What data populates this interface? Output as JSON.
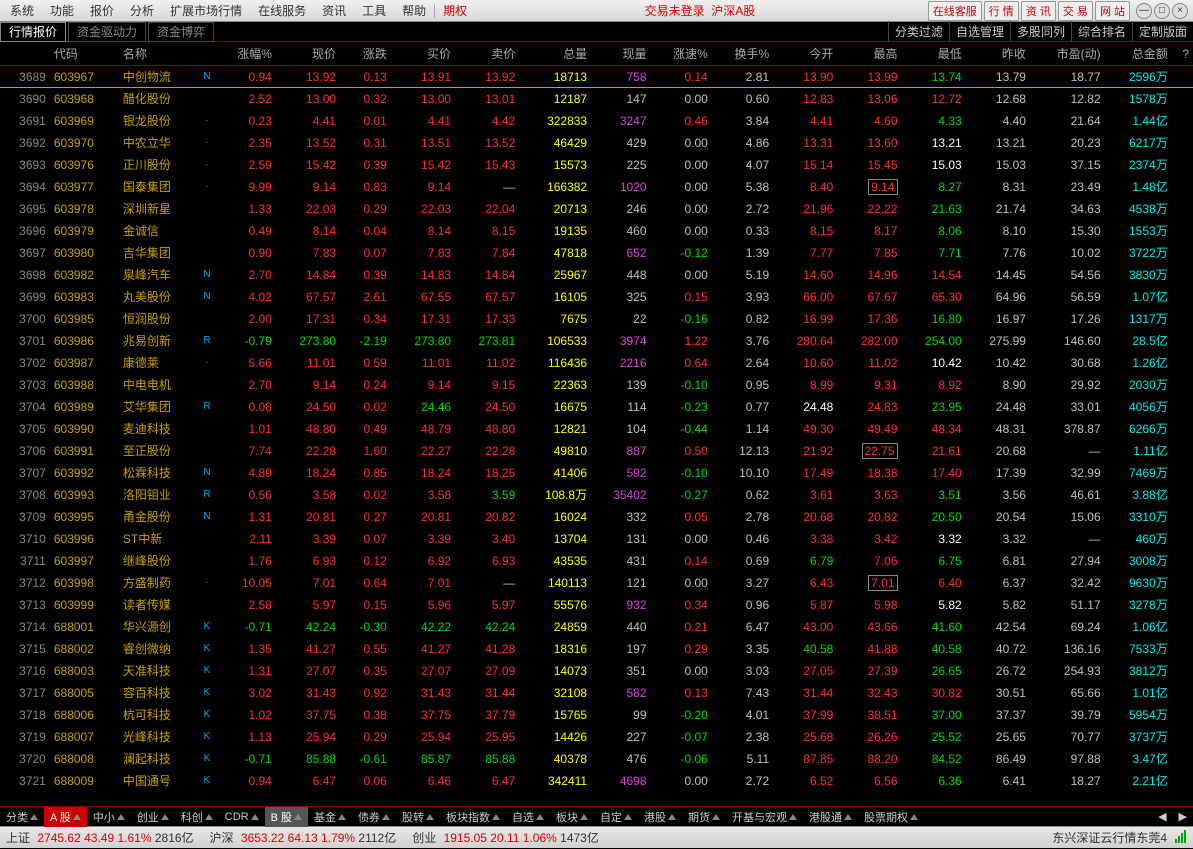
{
  "menu": {
    "items": [
      "系统",
      "功能",
      "报价",
      "分析",
      "扩展市场行情",
      "在线服务",
      "资讯",
      "工具",
      "帮助"
    ],
    "options": "期权",
    "login": "交易未登录",
    "market": "沪深A股",
    "right_buttons": [
      "在线客服",
      "行 情",
      "资 讯",
      "交 易",
      "网 站"
    ]
  },
  "subtabs": {
    "left": [
      "行情报价",
      "资金驱动力",
      "资金博弈"
    ],
    "active": 0,
    "right": [
      "分类过滤",
      "自选管理",
      "多股同列",
      "综合排名",
      "定制版面"
    ]
  },
  "columns": [
    "",
    "代码",
    "名称",
    "",
    "涨幅%",
    "现价",
    "涨跌",
    "买价",
    "卖价",
    "总量",
    "现量",
    "涨速%",
    "换手%",
    "今开",
    "最高",
    "最低",
    "昨收",
    "市盈(动)",
    "总金额",
    "?"
  ],
  "rows": [
    {
      "i": 3689,
      "c": "603967",
      "n": "中创物流",
      "m": "N",
      "pct": "0.94",
      "pc": "red",
      "px": "13.92",
      "chg": "0.13",
      "bid": "13.91",
      "ask": "13.92",
      "vol": "18713",
      "cv": "758",
      "cvc": "purple",
      "spd": "0.14",
      "sc": "red",
      "to": "2.81",
      "op": "13.90",
      "hi": "13.99",
      "lo": "13.74",
      "loc": "green",
      "pre": "13.79",
      "pe": "18.77",
      "amt": "2596万",
      "ul": true
    },
    {
      "i": 3690,
      "c": "603968",
      "n": "醋化股份",
      "m": "",
      "pct": "2.52",
      "pc": "red",
      "px": "13.00",
      "chg": "0.32",
      "bid": "13.00",
      "ask": "13.01",
      "vol": "12187",
      "cv": "147",
      "cvc": "gray",
      "spd": "0.00",
      "sc": "gray",
      "to": "0.60",
      "op": "12.83",
      "hi": "13.06",
      "lo": "12.72",
      "loc": "red",
      "pre": "12.68",
      "pe": "12.82",
      "amt": "1578万"
    },
    {
      "i": 3691,
      "c": "603969",
      "n": "银龙股份",
      "m": "·",
      "pct": "0.23",
      "pc": "red",
      "px": "4.41",
      "chg": "0.01",
      "bid": "4.41",
      "ask": "4.42",
      "vol": "322833",
      "cv": "3247",
      "cvc": "purple",
      "spd": "0.46",
      "sc": "red",
      "to": "3.84",
      "op": "4.41",
      "hi": "4.60",
      "lo": "4.33",
      "loc": "green",
      "pre": "4.40",
      "pe": "21.64",
      "amt": "1.44亿"
    },
    {
      "i": 3692,
      "c": "603970",
      "n": "中农立华",
      "m": "·",
      "pct": "2.35",
      "pc": "red",
      "px": "13.52",
      "chg": "0.31",
      "bid": "13.51",
      "ask": "13.52",
      "vol": "46429",
      "cv": "429",
      "cvc": "gray",
      "spd": "0.00",
      "sc": "gray",
      "to": "4.86",
      "op": "13.31",
      "hi": "13.60",
      "lo": "13.21",
      "loc": "white",
      "pre": "13.21",
      "pe": "20.23",
      "amt": "6217万"
    },
    {
      "i": 3693,
      "c": "603976",
      "n": "正川股份",
      "m": "·",
      "pct": "2.59",
      "pc": "red",
      "px": "15.42",
      "chg": "0.39",
      "bid": "15.42",
      "ask": "15.43",
      "vol": "15573",
      "cv": "225",
      "cvc": "gray",
      "spd": "0.00",
      "sc": "gray",
      "to": "4.07",
      "op": "15.14",
      "hi": "15.45",
      "lo": "15.03",
      "loc": "white",
      "pre": "15.03",
      "pe": "37.15",
      "amt": "2374万"
    },
    {
      "i": 3694,
      "c": "603977",
      "n": "国泰集团",
      "m": "·",
      "pct": "9.99",
      "pc": "red",
      "px": "9.14",
      "chg": "0.83",
      "bid": "9.14",
      "ask": "—",
      "askc": "gray",
      "vol": "166382",
      "cv": "1020",
      "cvc": "purple",
      "spd": "0.00",
      "sc": "gray",
      "to": "5.38",
      "op": "8.40",
      "hi": "9.14",
      "hibox": true,
      "lo": "8.27",
      "loc": "green",
      "pre": "8.31",
      "pe": "23.49",
      "amt": "1.48亿"
    },
    {
      "i": 3695,
      "c": "603978",
      "n": "深圳新星",
      "m": "",
      "pct": "1.33",
      "pc": "red",
      "px": "22.03",
      "chg": "0.29",
      "bid": "22.03",
      "ask": "22.04",
      "vol": "20713",
      "cv": "246",
      "cvc": "gray",
      "spd": "0.00",
      "sc": "gray",
      "to": "2.72",
      "op": "21.96",
      "hi": "22.22",
      "lo": "21.63",
      "loc": "green",
      "pre": "21.74",
      "pe": "34.63",
      "amt": "4538万"
    },
    {
      "i": 3696,
      "c": "603979",
      "n": "金诚信",
      "m": "",
      "pct": "0.49",
      "pc": "red",
      "px": "8.14",
      "chg": "0.04",
      "bid": "8.14",
      "ask": "8.15",
      "vol": "19135",
      "cv": "460",
      "cvc": "gray",
      "spd": "0.00",
      "sc": "gray",
      "to": "0.33",
      "op": "8.15",
      "hi": "8.17",
      "lo": "8.06",
      "loc": "green",
      "pre": "8.10",
      "pe": "15.30",
      "amt": "1553万"
    },
    {
      "i": 3697,
      "c": "603980",
      "n": "吉华集团",
      "m": "",
      "pct": "0.90",
      "pc": "red",
      "px": "7.83",
      "chg": "0.07",
      "bid": "7.83",
      "ask": "7.84",
      "vol": "47818",
      "cv": "652",
      "cvc": "purple",
      "spd": "-0.12",
      "sc": "green",
      "to": "1.39",
      "op": "7.77",
      "hi": "7.85",
      "lo": "7.71",
      "loc": "green",
      "pre": "7.76",
      "pe": "10.02",
      "amt": "3722万"
    },
    {
      "i": 3698,
      "c": "603982",
      "n": "泉峰汽车",
      "m": "N",
      "pct": "2.70",
      "pc": "red",
      "px": "14.84",
      "chg": "0.39",
      "bid": "14.83",
      "ask": "14.84",
      "vol": "25967",
      "cv": "448",
      "cvc": "gray",
      "spd": "0.00",
      "sc": "gray",
      "to": "5.19",
      "op": "14.60",
      "hi": "14.96",
      "lo": "14.54",
      "loc": "red",
      "pre": "14.45",
      "pe": "54.56",
      "amt": "3830万"
    },
    {
      "i": 3699,
      "c": "603983",
      "n": "丸美股份",
      "m": "N",
      "pct": "4.02",
      "pc": "red",
      "px": "67.57",
      "chg": "2.61",
      "bid": "67.55",
      "ask": "67.57",
      "vol": "16105",
      "cv": "325",
      "cvc": "gray",
      "spd": "0.15",
      "sc": "red",
      "to": "3.93",
      "op": "66.00",
      "hi": "67.67",
      "lo": "65.30",
      "loc": "red",
      "pre": "64.96",
      "pe": "56.59",
      "amt": "1.07亿"
    },
    {
      "i": 3700,
      "c": "603985",
      "n": "恒润股份",
      "m": "",
      "pct": "2.00",
      "pc": "red",
      "px": "17.31",
      "chg": "0.34",
      "bid": "17.31",
      "ask": "17.33",
      "vol": "7675",
      "cv": "22",
      "cvc": "gray",
      "spd": "-0.16",
      "sc": "green",
      "to": "0.82",
      "op": "16.99",
      "hi": "17.36",
      "lo": "16.80",
      "loc": "green",
      "pre": "16.97",
      "pe": "17.26",
      "amt": "1317万"
    },
    {
      "i": 3701,
      "c": "603986",
      "n": "兆易创新",
      "m": "R",
      "pct": "-0.79",
      "pc": "green",
      "px": "273.80",
      "pxc": "green",
      "chg": "-2.19",
      "chgc": "green",
      "bid": "273.80",
      "bidc": "green",
      "ask": "273.81",
      "askc": "green",
      "vol": "106533",
      "cv": "3974",
      "cvc": "purple",
      "spd": "1.22",
      "sc": "red",
      "to": "3.76",
      "op": "280.64",
      "hi": "282.00",
      "lo": "254.00",
      "loc": "green",
      "pre": "275.99",
      "pe": "146.60",
      "amt": "28.5亿"
    },
    {
      "i": 3702,
      "c": "603987",
      "n": "康德莱",
      "m": "·",
      "pct": "5.66",
      "pc": "red",
      "px": "11.01",
      "chg": "0.59",
      "bid": "11.01",
      "ask": "11.02",
      "vol": "116436",
      "cv": "2216",
      "cvc": "purple",
      "spd": "0.64",
      "sc": "red",
      "to": "2.64",
      "op": "10.60",
      "hi": "11.02",
      "lo": "10.42",
      "loc": "white",
      "pre": "10.42",
      "pe": "30.68",
      "amt": "1.26亿"
    },
    {
      "i": 3703,
      "c": "603988",
      "n": "中电电机",
      "m": "",
      "pct": "2.70",
      "pc": "red",
      "px": "9.14",
      "chg": "0.24",
      "bid": "9.14",
      "ask": "9.15",
      "vol": "22363",
      "cv": "139",
      "cvc": "gray",
      "spd": "-0.10",
      "sc": "green",
      "to": "0.95",
      "op": "8.99",
      "hi": "9.31",
      "lo": "8.92",
      "loc": "red",
      "pre": "8.90",
      "pe": "29.92",
      "amt": "2030万"
    },
    {
      "i": 3704,
      "c": "603989",
      "n": "艾华集团",
      "m": "R",
      "pct": "0.08",
      "pc": "red",
      "px": "24.50",
      "chg": "0.02",
      "bid": "24.46",
      "bidc": "green",
      "ask": "24.50",
      "vol": "16675",
      "cv": "114",
      "cvc": "gray",
      "spd": "-0.23",
      "sc": "green",
      "to": "0.77",
      "op": "24.48",
      "opc": "white",
      "hi": "24.83",
      "lo": "23.95",
      "loc": "green",
      "pre": "24.48",
      "pe": "33.01",
      "amt": "4056万"
    },
    {
      "i": 3705,
      "c": "603990",
      "n": "麦迪科技",
      "m": "",
      "pct": "1.01",
      "pc": "red",
      "px": "48.80",
      "chg": "0.49",
      "bid": "48.79",
      "ask": "48.80",
      "vol": "12821",
      "cv": "104",
      "cvc": "gray",
      "spd": "-0.44",
      "sc": "green",
      "to": "1.14",
      "op": "49.30",
      "hi": "49.49",
      "lo": "48.34",
      "loc": "red",
      "pre": "48.31",
      "pe": "378.87",
      "amt": "6266万"
    },
    {
      "i": 3706,
      "c": "603991",
      "n": "至正股份",
      "m": "",
      "pct": "7.74",
      "pc": "red",
      "px": "22.28",
      "chg": "1.60",
      "bid": "22.27",
      "ask": "22.28",
      "vol": "49810",
      "cv": "887",
      "cvc": "purple",
      "spd": "0.50",
      "sc": "red",
      "to": "12.13",
      "op": "21.92",
      "hi": "22.75",
      "hibox": true,
      "lo": "21.61",
      "loc": "red",
      "pre": "20.68",
      "pe": "—",
      "amt": "1.11亿"
    },
    {
      "i": 3707,
      "c": "603992",
      "n": "松霖科技",
      "m": "N",
      "pct": "4.89",
      "pc": "red",
      "px": "18.24",
      "chg": "0.85",
      "bid": "18.24",
      "ask": "18.25",
      "vol": "41406",
      "cv": "592",
      "cvc": "purple",
      "spd": "-0.10",
      "sc": "green",
      "to": "10.10",
      "op": "17.49",
      "hi": "18.38",
      "lo": "17.40",
      "loc": "red",
      "pre": "17.39",
      "pe": "32.99",
      "amt": "7469万"
    },
    {
      "i": 3708,
      "c": "603993",
      "n": "洛阳钼业",
      "m": "R",
      "pct": "0.56",
      "pc": "red",
      "px": "3.58",
      "chg": "0.02",
      "bid": "3.58",
      "ask": "3.59",
      "askc": "green",
      "vol": "108.8万",
      "cv": "35402",
      "cvc": "purple",
      "spd": "-0.27",
      "sc": "green",
      "to": "0.62",
      "op": "3.61",
      "hi": "3.63",
      "lo": "3.51",
      "loc": "green",
      "pre": "3.56",
      "pe": "46.61",
      "amt": "3.88亿"
    },
    {
      "i": 3709,
      "c": "603995",
      "n": "甬金股份",
      "m": "N",
      "pct": "1.31",
      "pc": "red",
      "px": "20.81",
      "chg": "0.27",
      "bid": "20.81",
      "ask": "20.82",
      "vol": "16024",
      "cv": "332",
      "cvc": "gray",
      "spd": "0.05",
      "sc": "red",
      "to": "2.78",
      "op": "20.68",
      "hi": "20.82",
      "lo": "20.50",
      "loc": "green",
      "pre": "20.54",
      "pe": "15.06",
      "amt": "3310万"
    },
    {
      "i": 3710,
      "c": "603996",
      "n": "ST中新",
      "m": "",
      "pct": "2.11",
      "pc": "red",
      "px": "3.39",
      "chg": "0.07",
      "bid": "3.39",
      "ask": "3.40",
      "vol": "13704",
      "cv": "131",
      "cvc": "gray",
      "spd": "0.00",
      "sc": "gray",
      "to": "0.46",
      "op": "3.38",
      "hi": "3.42",
      "lo": "3.32",
      "loc": "white",
      "pre": "3.32",
      "pe": "—",
      "amt": "460万"
    },
    {
      "i": 3711,
      "c": "603997",
      "n": "继峰股份",
      "m": "",
      "pct": "1.76",
      "pc": "red",
      "px": "6.93",
      "chg": "0.12",
      "bid": "6.92",
      "ask": "6.93",
      "vol": "43535",
      "cv": "431",
      "cvc": "gray",
      "spd": "0.14",
      "sc": "red",
      "to": "0.69",
      "op": "6.79",
      "opc": "green",
      "hi": "7.06",
      "lo": "6.75",
      "loc": "green",
      "pre": "6.81",
      "pe": "27.94",
      "amt": "3008万"
    },
    {
      "i": 3712,
      "c": "603998",
      "n": "方盛制药",
      "m": "·",
      "pct": "10.05",
      "pc": "red",
      "px": "7.01",
      "chg": "0.64",
      "bid": "7.01",
      "ask": "—",
      "askc": "gray",
      "vol": "140113",
      "cv": "121",
      "cvc": "gray",
      "spd": "0.00",
      "sc": "gray",
      "to": "3.27",
      "op": "6.43",
      "hi": "7.01",
      "hibox": true,
      "lo": "6.40",
      "loc": "red",
      "pre": "6.37",
      "pe": "32.42",
      "amt": "9630万"
    },
    {
      "i": 3713,
      "c": "603999",
      "n": "读者传媒",
      "m": "",
      "pct": "2.58",
      "pc": "red",
      "px": "5.97",
      "chg": "0.15",
      "bid": "5.96",
      "ask": "5.97",
      "vol": "55576",
      "cv": "932",
      "cvc": "purple",
      "spd": "0.34",
      "sc": "red",
      "to": "0.96",
      "op": "5.87",
      "hi": "5.98",
      "lo": "5.82",
      "loc": "white",
      "pre": "5.82",
      "pe": "51.17",
      "amt": "3278万"
    },
    {
      "i": 3714,
      "c": "688001",
      "n": "华兴源创",
      "m": "K",
      "pct": "-0.71",
      "pc": "green",
      "px": "42.24",
      "pxc": "green",
      "chg": "-0.30",
      "chgc": "green",
      "bid": "42.22",
      "bidc": "green",
      "ask": "42.24",
      "askc": "green",
      "vol": "24859",
      "cv": "440",
      "cvc": "gray",
      "spd": "0.21",
      "sc": "red",
      "to": "6.47",
      "op": "43.00",
      "hi": "43.66",
      "lo": "41.60",
      "loc": "green",
      "pre": "42.54",
      "pe": "69.24",
      "amt": "1.06亿"
    },
    {
      "i": 3715,
      "c": "688002",
      "n": "睿创微纳",
      "m": "K",
      "pct": "1.35",
      "pc": "red",
      "px": "41.27",
      "chg": "0.55",
      "bid": "41.27",
      "ask": "41.28",
      "vol": "18316",
      "cv": "197",
      "cvc": "gray",
      "spd": "0.29",
      "sc": "red",
      "to": "3.35",
      "op": "40.58",
      "opc": "green",
      "hi": "41.88",
      "lo": "40.58",
      "loc": "green",
      "pre": "40.72",
      "pe": "136.16",
      "amt": "7533万"
    },
    {
      "i": 3716,
      "c": "688003",
      "n": "天准科技",
      "m": "K",
      "pct": "1.31",
      "pc": "red",
      "px": "27.07",
      "chg": "0.35",
      "bid": "27.07",
      "ask": "27.09",
      "vol": "14073",
      "cv": "351",
      "cvc": "gray",
      "spd": "0.00",
      "sc": "gray",
      "to": "3.03",
      "op": "27.05",
      "hi": "27.39",
      "lo": "26.65",
      "loc": "green",
      "pre": "26.72",
      "pe": "254.93",
      "amt": "3812万"
    },
    {
      "i": 3717,
      "c": "688005",
      "n": "容百科技",
      "m": "K",
      "pct": "3.02",
      "pc": "red",
      "px": "31.43",
      "chg": "0.92",
      "bid": "31.43",
      "ask": "31.44",
      "vol": "32108",
      "cv": "582",
      "cvc": "purple",
      "spd": "0.13",
      "sc": "red",
      "to": "7.43",
      "op": "31.44",
      "hi": "32.43",
      "lo": "30.82",
      "loc": "red",
      "pre": "30.51",
      "pe": "65.66",
      "amt": "1.01亿"
    },
    {
      "i": 3718,
      "c": "688006",
      "n": "杭可科技",
      "m": "K",
      "pct": "1.02",
      "pc": "red",
      "px": "37.75",
      "chg": "0.38",
      "bid": "37.75",
      "ask": "37.79",
      "vol": "15765",
      "cv": "99",
      "cvc": "gray",
      "spd": "-0.20",
      "sc": "green",
      "to": "4.01",
      "op": "37.99",
      "hi": "38.51",
      "lo": "37.00",
      "loc": "green",
      "pre": "37.37",
      "pe": "39.79",
      "amt": "5954万"
    },
    {
      "i": 3719,
      "c": "688007",
      "n": "光峰科技",
      "m": "K",
      "pct": "1.13",
      "pc": "red",
      "px": "25.94",
      "chg": "0.29",
      "bid": "25.94",
      "ask": "25.95",
      "vol": "14426",
      "cv": "227",
      "cvc": "gray",
      "spd": "-0.07",
      "sc": "green",
      "to": "2.38",
      "op": "25.68",
      "hi": "26.26",
      "lo": "25.52",
      "loc": "green",
      "pre": "25.65",
      "pe": "70.77",
      "amt": "3737万"
    },
    {
      "i": 3720,
      "c": "688008",
      "n": "澜起科技",
      "m": "K",
      "pct": "-0.71",
      "pc": "green",
      "px": "85.88",
      "pxc": "green",
      "chg": "-0.61",
      "chgc": "green",
      "bid": "85.87",
      "bidc": "green",
      "ask": "85.88",
      "askc": "green",
      "vol": "40378",
      "cv": "476",
      "cvc": "gray",
      "spd": "-0.06",
      "sc": "green",
      "to": "5.11",
      "op": "87.85",
      "hi": "88.20",
      "lo": "84.52",
      "loc": "green",
      "pre": "86.49",
      "pe": "97.88",
      "amt": "3.47亿"
    },
    {
      "i": 3721,
      "c": "688009",
      "n": "中国通号",
      "m": "K",
      "pct": "0.94",
      "pc": "red",
      "px": "6.47",
      "chg": "0.06",
      "bid": "6.46",
      "ask": "6.47",
      "vol": "342411",
      "cv": "4698",
      "cvc": "purple",
      "spd": "0.00",
      "sc": "gray",
      "to": "2.72",
      "op": "6.52",
      "hi": "6.56",
      "lo": "6.36",
      "loc": "green",
      "pre": "6.41",
      "pe": "18.27",
      "amt": "2.21亿"
    }
  ],
  "bottom_tabs": [
    "分类",
    "A 股",
    "中小",
    "创业",
    "科创",
    "CDR",
    "B 股",
    "基金",
    "债券",
    "股转",
    "板块指数",
    "自选",
    "板块",
    "自定",
    "港股",
    "期货",
    "开基与宏观",
    "港股通",
    "股票期权"
  ],
  "bottom_active": 1,
  "status": {
    "sh": {
      "label": "上证",
      "val": "2745.62",
      "chg": "43.49",
      "pct": "1.61%",
      "vol": "2816亿"
    },
    "hs": {
      "label": "沪深",
      "val": "3653.22",
      "chg": "64.13",
      "pct": "1.79%",
      "vol": "2112亿"
    },
    "cy": {
      "label": "创业",
      "val": "1915.05",
      "chg": "20.11",
      "pct": "1.06%",
      "vol": "1473亿"
    },
    "server": "东兴深证云行情东莞4"
  }
}
